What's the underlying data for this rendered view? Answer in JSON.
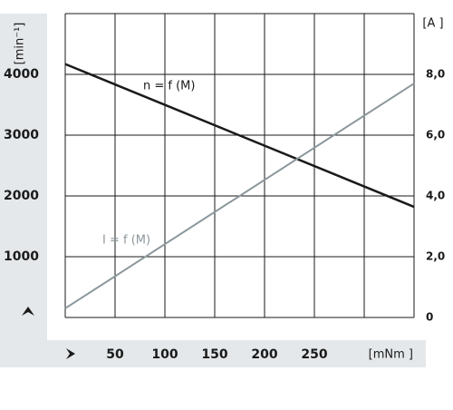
{
  "chart_data": {
    "type": "line",
    "x_label": "[mNm ]",
    "y_label": "[min⁻¹]",
    "y2_label": "[A ]",
    "xlim": [
      0,
      350
    ],
    "xticks": [
      50,
      100,
      150,
      200,
      250
    ],
    "ylim": [
      0,
      5000
    ],
    "yticks": [
      1000,
      2000,
      3000,
      4000
    ],
    "y2lim": [
      0,
      10
    ],
    "y2ticks": [
      0,
      {
        "value": 2,
        "label": "2,0"
      },
      {
        "value": 4,
        "label": "4,0"
      },
      {
        "value": 6,
        "label": "6,0"
      },
      {
        "value": 8,
        "label": "8,0"
      }
    ],
    "grid": true,
    "x": [
      0,
      350
    ],
    "series": [
      {
        "name": "n = f (M)",
        "color": "#1a1a1a",
        "values": [
          4170,
          1820
        ]
      },
      {
        "name": "I = f (M)",
        "color": "#8c979c",
        "axis": "y2",
        "values": [
          0.3,
          7.7
        ]
      }
    ]
  }
}
